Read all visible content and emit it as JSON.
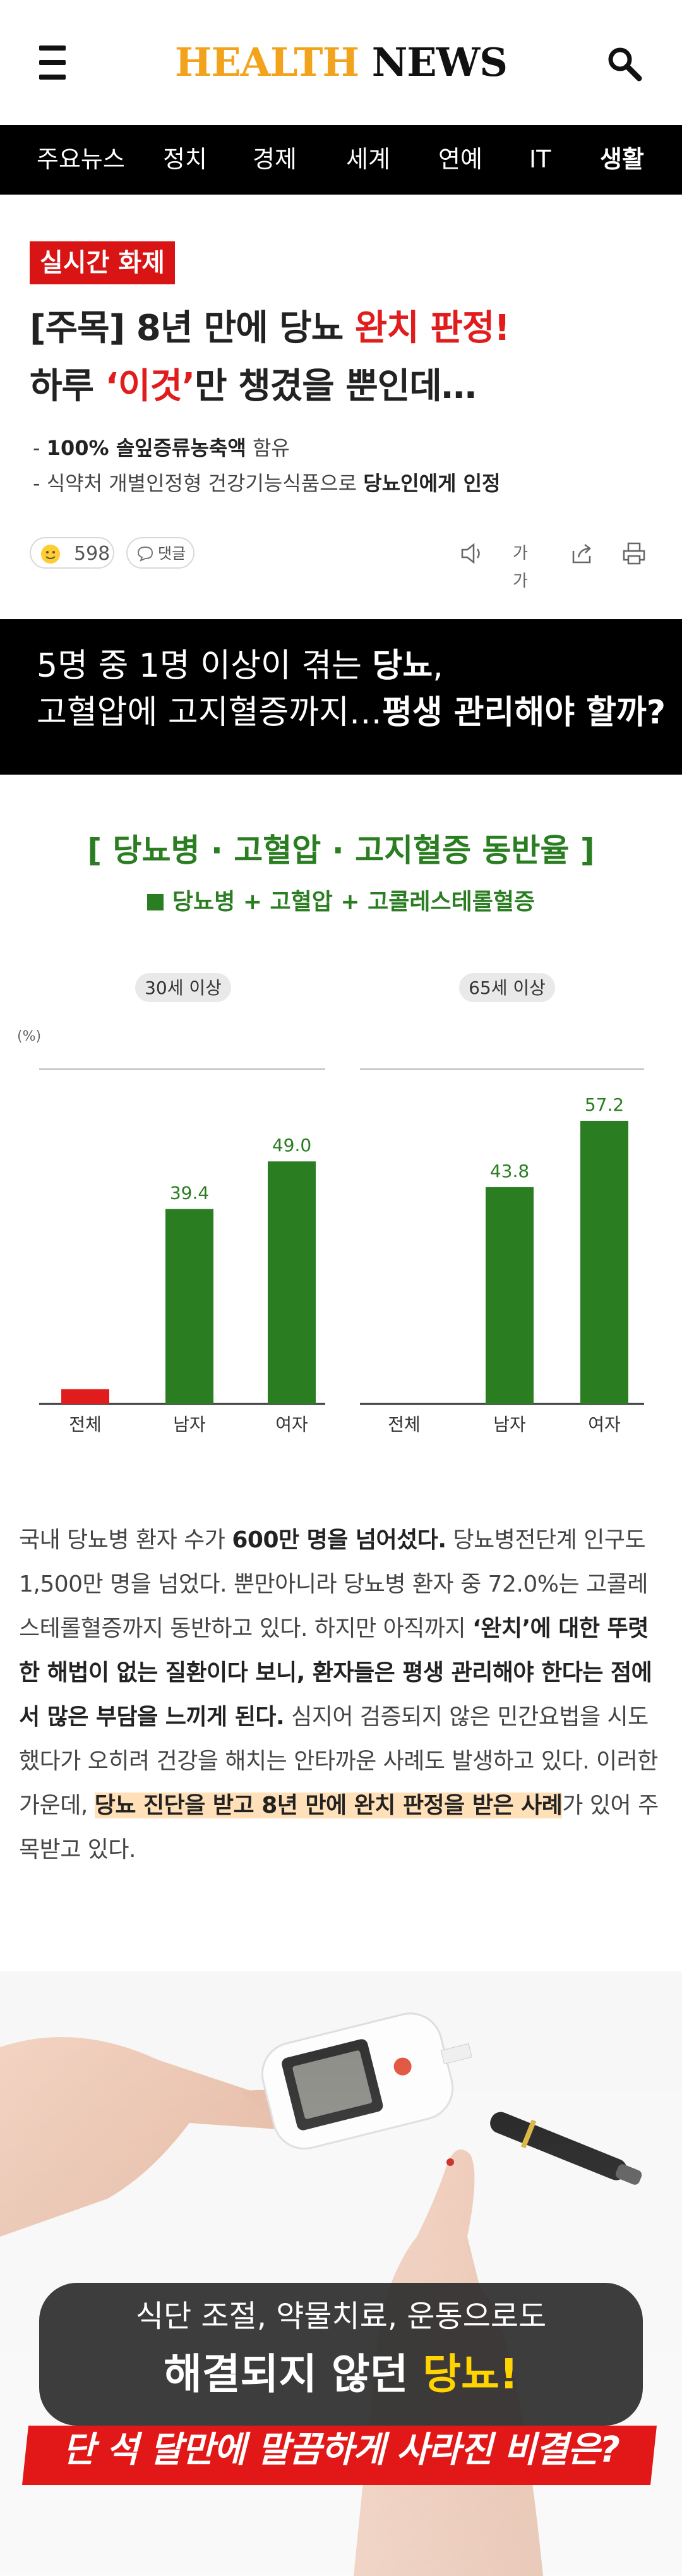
{
  "header": {
    "logo_part1": "HEALTH",
    "logo_part2": "NEWS",
    "menu_icon": "hamburger-menu-icon",
    "search_icon": "search-icon"
  },
  "nav": {
    "items": [
      "주요뉴스",
      "정치",
      "경제",
      "세계",
      "연예",
      "IT",
      "생활"
    ],
    "active_index": 6
  },
  "article": {
    "badge": "실시간 화제",
    "headline_line1_a": "[주목] 8년 만에 당뇨 ",
    "headline_line1_red": "완치 판정!",
    "headline_line2_a": "하루 ",
    "headline_line2_red": "‘이것’",
    "headline_line2_b": "만 챙겼을 뿐인데…",
    "sub1_prefix": "- ",
    "sub1_bold": "100% 솔잎증류농축액",
    "sub1_rest": " 함유",
    "sub2_rest": "- 식약처 개별인정형 건강기능식품으로 ",
    "sub2_bold": "당뇨인에게 인정",
    "reaction_count": "598",
    "comment_label": "댓글",
    "font_size_label": "가가"
  },
  "banner": {
    "line1_a": "5명 중 1명 이상이 겪는 ",
    "line1_bold": "당뇨",
    "line1_b": ",",
    "line2_a": "고혈압에 고지혈증까지…",
    "line2_bold": "평생 관리해야 할까?"
  },
  "chart_data": {
    "type": "bar",
    "title": "[ 당뇨병 · 고혈압 · 고지혈증 동반율 ]",
    "legend": "당뇨병 + 고혈압 + 고콜레스테롤혈증",
    "unit_label": "(%)",
    "ylim": [
      0,
      60
    ],
    "color_main": "#2a7d21",
    "color_highlight": "#e01c1c",
    "panels": [
      {
        "label": "30세 이상",
        "categories": [
          "전체",
          "남자",
          "여자"
        ],
        "values": [
          3,
          39.4,
          49.0
        ],
        "value_labels": [
          "",
          "39.4",
          "49.0"
        ]
      },
      {
        "label": "65세 이상",
        "categories": [
          "전체",
          "남자",
          "여자"
        ],
        "values": [
          0,
          43.8,
          57.2
        ],
        "value_labels": [
          "",
          "43.8",
          "57.2"
        ]
      }
    ]
  },
  "body": {
    "p1": "국내 당뇨병 환자 수가 ",
    "p2": "600만 명을 넘어섰다.",
    "p3": " 당뇨병전단계 인구도 1,500만 명을 넘었다. 뿐만아니라 당뇨병 환자 중 72.0%는 고콜레스테롤혈증까지 동반하고 있다. 하지만 아직까지 ",
    "p4": "‘완치’에 대한 뚜렷한 해법이 없는 질환이다 보니, 환자들은 평생 관리해야 한다는 점에서 많은 부담을 느끼게 된다.",
    "p5": " 심지어 검증되지 않은 민간요법을 시도했다가 오히려 건강을 해치는 안타까운 사례도 발생하고 있다. 이러한 가운데, ",
    "p6": "당뇨 진단을 받고 8년 만에 완치 판정을 받은 사례",
    "p7": "가 있어 주목받고 있다."
  },
  "promo": {
    "line1": "식단 조절, 약물치료, 운동으로도",
    "line2_a": "해결되지 않던 ",
    "line2_b": "당뇨!",
    "strip": "단 석 달만에 말끔하게 사라진 비결은?"
  }
}
